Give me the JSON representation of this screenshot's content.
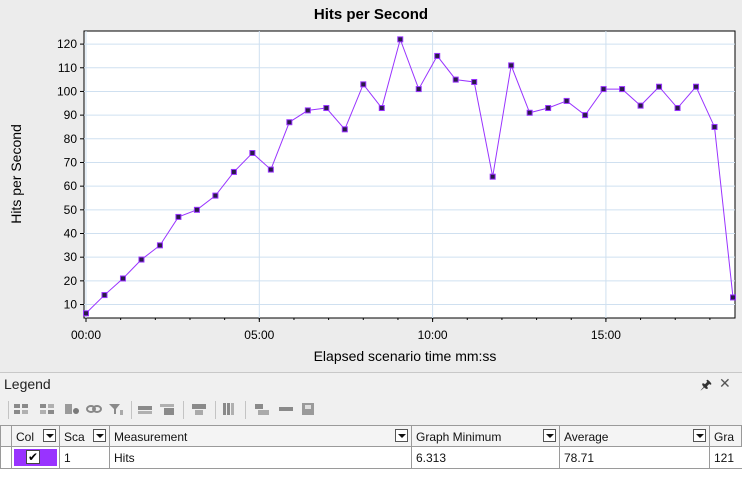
{
  "chart_data": {
    "type": "line",
    "title": "Hits per Second",
    "xlabel": "Elapsed scenario time mm:ss",
    "ylabel": "Hits per Second",
    "x_tick_labels": [
      "00:00",
      "05:00",
      "10:00",
      "15:00"
    ],
    "x_ticks_seconds": [
      0,
      300,
      600,
      900
    ],
    "y_ticks": [
      10,
      20,
      30,
      40,
      50,
      60,
      70,
      80,
      90,
      100,
      110,
      120
    ],
    "xlim_seconds": [
      0,
      1120
    ],
    "ylim": [
      6,
      123
    ],
    "grid": true,
    "series": [
      {
        "name": "Hits",
        "color": "#9933ff",
        "x_seconds": [
          0,
          32,
          64,
          96,
          128,
          160,
          192,
          224,
          256,
          288,
          320,
          352,
          384,
          416,
          448,
          480,
          512,
          544,
          576,
          608,
          640,
          672,
          704,
          736,
          768,
          800,
          832,
          864,
          896,
          928,
          960,
          992,
          1024,
          1056,
          1088,
          1120
        ],
        "values": [
          6.3,
          14,
          21,
          29,
          35,
          47,
          50,
          56,
          66,
          74,
          67,
          87,
          92,
          93,
          84,
          103,
          93,
          122,
          101,
          115,
          105,
          104,
          64,
          111,
          91,
          93,
          96,
          90,
          101,
          101,
          94,
          102,
          93,
          102,
          85,
          13
        ]
      }
    ]
  },
  "legend": {
    "title": "Legend",
    "pin_icon": "pin-icon",
    "close_icon": "close-icon",
    "columns": [
      "Col",
      "Sca",
      "Measurement",
      "Graph Minimum",
      "Average",
      "Gra"
    ],
    "rows": [
      {
        "color": "#9933ff",
        "checked": true,
        "scale": "1",
        "measurement": "Hits",
        "graph_minimum": "6.313",
        "average": "78.71",
        "graph_max": "121"
      }
    ]
  },
  "colors": {
    "plot_background": "#ffffff",
    "panel_background": "#ececec",
    "grid": "#cfe0f0",
    "series": "#9933ff"
  }
}
